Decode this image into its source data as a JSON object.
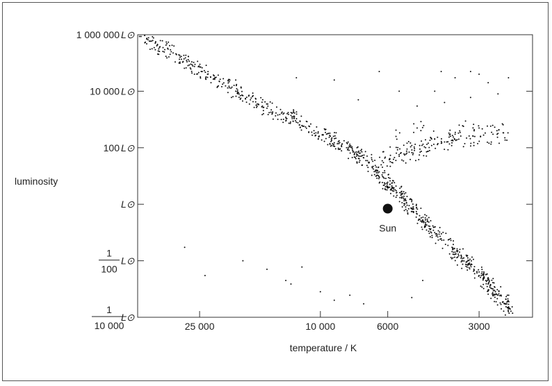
{
  "chart_data": {
    "type": "scatter",
    "title": "",
    "xlabel": "temperature / K",
    "ylabel": "luminosity",
    "x_scale": "log, decreasing",
    "y_scale": "log",
    "xlim": [
      40000,
      2000
    ],
    "ylim": [
      0.0001,
      1000000
    ],
    "grid": false,
    "x_ticks": [
      {
        "value": 25000,
        "label": "25 000"
      },
      {
        "value": 10000,
        "label": "10 000"
      },
      {
        "value": 6000,
        "label": "6000"
      },
      {
        "value": 3000,
        "label": "3000"
      }
    ],
    "y_ticks": [
      {
        "value": 1000000,
        "num": "1 000 000",
        "den": "",
        "unit": "L⊙"
      },
      {
        "value": 10000,
        "num": "10 000",
        "den": "",
        "unit": "L⊙"
      },
      {
        "value": 100,
        "num": "100",
        "den": "",
        "unit": "L⊙"
      },
      {
        "value": 1,
        "num": "",
        "den": "",
        "unit": "L⊙"
      },
      {
        "value": 0.01,
        "num": "1",
        "den": "100",
        "unit": "L⊙"
      },
      {
        "value": 0.0001,
        "num": "1",
        "den": "10 000",
        "unit": "L⊙"
      }
    ],
    "annotation": {
      "label": "Sun",
      "temperature": 6000,
      "luminosity": 0.7
    },
    "series": [
      {
        "kind": "main sequence",
        "points": [
          [
            39000,
            870000
          ],
          [
            37000,
            660000
          ],
          [
            35000,
            500000
          ],
          [
            33000,
            350000
          ],
          [
            31000,
            250000
          ],
          [
            29000,
            160000
          ],
          [
            27500,
            110000
          ],
          [
            26000,
            75000
          ],
          [
            24500,
            50000
          ],
          [
            23000,
            32000
          ],
          [
            21500,
            22000
          ],
          [
            20000,
            15000
          ],
          [
            19000,
            10000
          ],
          [
            18000,
            7000
          ],
          [
            17000,
            5000
          ],
          [
            16000,
            3500
          ],
          [
            15000,
            2500
          ],
          [
            14000,
            1700
          ],
          [
            13000,
            1200
          ],
          [
            12000,
            800
          ],
          [
            11200,
            550
          ],
          [
            10500,
            400
          ],
          [
            9800,
            280
          ],
          [
            9200,
            200
          ],
          [
            8700,
            140
          ],
          [
            8200,
            100
          ],
          [
            7800,
            70
          ],
          [
            7400,
            50
          ],
          [
            7000,
            35
          ],
          [
            6700,
            22
          ],
          [
            6400,
            14
          ],
          [
            6200,
            9
          ],
          [
            6000,
            6
          ],
          [
            5800,
            4
          ],
          [
            5600,
            2.6
          ],
          [
            5400,
            1.7
          ],
          [
            5200,
            1.1
          ],
          [
            5000,
            0.7
          ],
          [
            4800,
            0.45
          ],
          [
            4600,
            0.28
          ],
          [
            4400,
            0.17
          ],
          [
            4200,
            0.1
          ],
          [
            4000,
            0.06
          ],
          [
            3800,
            0.035
          ],
          [
            3600,
            0.02
          ],
          [
            3400,
            0.012
          ],
          [
            3200,
            0.007
          ],
          [
            3000,
            0.004
          ],
          [
            2900,
            0.0025
          ],
          [
            2800,
            0.0015
          ],
          [
            2700,
            0.001
          ],
          [
            2600,
            0.0006
          ],
          [
            2500,
            0.00035
          ],
          [
            2400,
            0.0002
          ],
          [
            12500,
            1400
          ],
          [
            9000,
            150
          ],
          [
            7600,
            60
          ],
          [
            5900,
            5
          ],
          [
            5100,
            0.9
          ],
          [
            4500,
            0.2
          ],
          [
            3500,
            0.015
          ],
          [
            3300,
            0.009
          ],
          [
            2850,
            0.002
          ],
          [
            2650,
            0.0008
          ],
          [
            2450,
            0.0003
          ]
        ]
      },
      {
        "kind": "giants",
        "points": [
          [
            6200,
            30
          ],
          [
            5900,
            40
          ],
          [
            5700,
            45
          ],
          [
            5500,
            50
          ],
          [
            5300,
            60
          ],
          [
            5100,
            70
          ],
          [
            4900,
            80
          ],
          [
            4700,
            90
          ],
          [
            4500,
            100
          ],
          [
            4300,
            120
          ],
          [
            4100,
            140
          ],
          [
            3900,
            160
          ],
          [
            3700,
            180
          ],
          [
            3500,
            200
          ],
          [
            3300,
            220
          ],
          [
            3100,
            250
          ],
          [
            2900,
            280
          ],
          [
            2700,
            300
          ],
          [
            2600,
            320
          ],
          [
            2500,
            340
          ],
          [
            5000,
            120
          ],
          [
            4200,
            200
          ],
          [
            3600,
            300
          ],
          [
            6500,
            15
          ],
          [
            5600,
            200
          ],
          [
            4800,
            500
          ],
          [
            3400,
            600
          ],
          [
            3000,
            500
          ]
        ]
      },
      {
        "kind": "supergiants",
        "points": [
          [
            26000,
            40000
          ],
          [
            19000,
            25000
          ],
          [
            12000,
            30000
          ],
          [
            9000,
            25000
          ],
          [
            6400,
            50000
          ],
          [
            4000,
            50000
          ],
          [
            3600,
            30000
          ],
          [
            3200,
            50000
          ],
          [
            2800,
            20000
          ],
          [
            2400,
            30000
          ],
          [
            3900,
            4000
          ],
          [
            4200,
            10000
          ],
          [
            3200,
            6000
          ],
          [
            2600,
            8000
          ],
          [
            5500,
            10000
          ],
          [
            4800,
            3000
          ],
          [
            7500,
            5000
          ],
          [
            3000,
            40000
          ]
        ]
      },
      {
        "kind": "white dwarfs",
        "points": [
          [
            28000,
            0.03
          ],
          [
            24000,
            0.003
          ],
          [
            18000,
            0.01
          ],
          [
            15000,
            0.005
          ],
          [
            13000,
            0.002
          ],
          [
            12500,
            0.0015
          ],
          [
            11500,
            0.006
          ],
          [
            10000,
            0.0008
          ],
          [
            9000,
            0.0004
          ],
          [
            8000,
            0.0006
          ],
          [
            7200,
            0.0003
          ],
          [
            5000,
            0.0005
          ],
          [
            4600,
            0.002
          ]
        ]
      }
    ]
  }
}
